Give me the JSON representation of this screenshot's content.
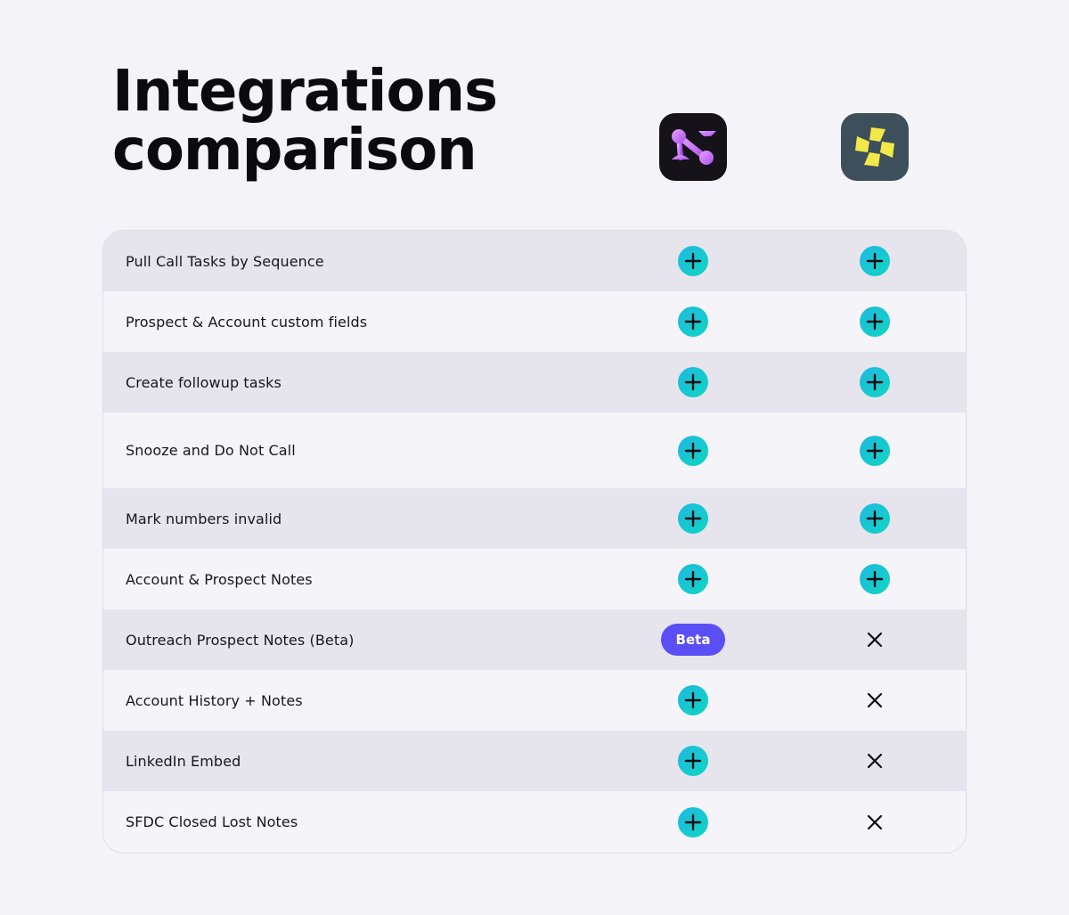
{
  "title": {
    "line1": "Integrations",
    "line2": "comparison"
  },
  "columns": [
    {
      "icon": "purple-network-logo-icon",
      "background": "#15121a"
    },
    {
      "icon": "yellow-pinwheel-logo-icon",
      "background": "#3c4f5a"
    }
  ],
  "colors": {
    "plus_gradient_start": "#20b8e0",
    "plus_gradient_end": "#0fd6c2",
    "beta_badge": "#5b4ef5",
    "row_shaded": "#e6e5ee",
    "row_plain": "#f5f5f9"
  },
  "rows": [
    {
      "label": "Pull Call Tasks by Sequence",
      "a": "plus",
      "b": "plus"
    },
    {
      "label": "Prospect & Account custom fields",
      "a": "plus",
      "b": "plus"
    },
    {
      "label": "Create followup tasks",
      "a": "plus",
      "b": "plus"
    },
    {
      "label": "Snooze and Do Not Call",
      "a": "plus",
      "b": "plus"
    },
    {
      "label": "Mark numbers invalid",
      "a": "plus",
      "b": "plus"
    },
    {
      "label": "Account & Prospect Notes",
      "a": "plus",
      "b": "plus"
    },
    {
      "label": "Outreach Prospect Notes (Beta)",
      "a": "beta",
      "b": "cross"
    },
    {
      "label": "Account History + Notes",
      "a": "plus",
      "b": "cross"
    },
    {
      "label": "LinkedIn Embed",
      "a": "plus",
      "b": "cross"
    },
    {
      "label": "SFDC Closed Lost Notes",
      "a": "plus",
      "b": "cross"
    }
  ],
  "badge": {
    "beta_label": "Beta"
  }
}
